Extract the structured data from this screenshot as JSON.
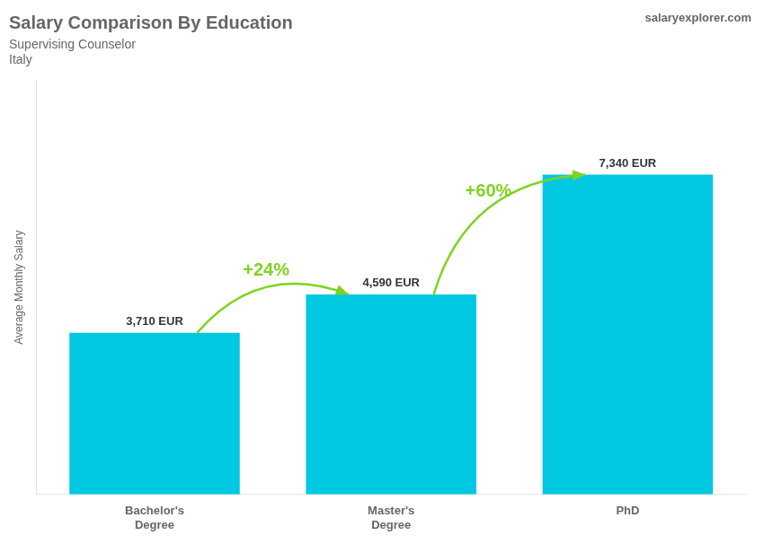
{
  "chart_data": {
    "type": "bar",
    "title": "Salary Comparison By Education",
    "subtitle": "Supervising Counselor",
    "country": "Italy",
    "watermark": "salaryexplorer.com",
    "ylabel": "Average Monthly Salary",
    "categories": [
      "Bachelor's\nDegree",
      "Master's\nDegree",
      "PhD"
    ],
    "values": [
      3710,
      4590,
      7340
    ],
    "value_labels": [
      "3,710 EUR",
      "4,590 EUR",
      "7,340 EUR"
    ],
    "data_labels": true,
    "color": "#00c8e0",
    "ylim": [
      0,
      9500
    ],
    "yticks": [],
    "tick_labels": "x",
    "grid": false,
    "annotations": [
      {
        "text": "+24%",
        "color": "#7ed321"
      },
      {
        "text": "+60%",
        "color": "#7ed321"
      }
    ]
  }
}
